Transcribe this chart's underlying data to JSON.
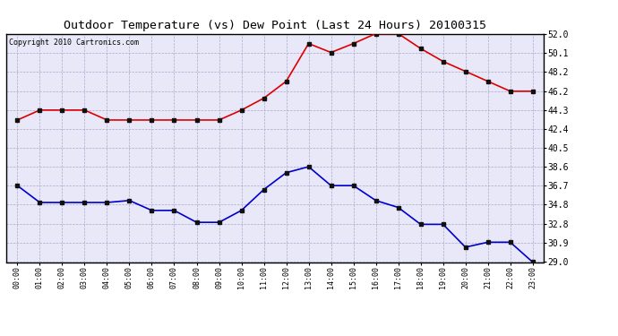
{
  "title": "Outdoor Temperature (vs) Dew Point (Last 24 Hours) 20100315",
  "copyright": "Copyright 2010 Cartronics.com",
  "x_labels": [
    "00:00",
    "01:00",
    "02:00",
    "03:00",
    "04:00",
    "05:00",
    "06:00",
    "07:00",
    "08:00",
    "09:00",
    "10:00",
    "11:00",
    "12:00",
    "13:00",
    "14:00",
    "15:00",
    "16:00",
    "17:00",
    "18:00",
    "19:00",
    "20:00",
    "21:00",
    "22:00",
    "23:00"
  ],
  "temp_red": [
    43.3,
    44.3,
    44.3,
    44.3,
    43.3,
    43.3,
    43.3,
    43.3,
    43.3,
    43.3,
    44.3,
    45.5,
    47.2,
    51.0,
    50.1,
    51.0,
    52.0,
    52.0,
    50.5,
    49.2,
    48.2,
    47.2,
    46.2,
    46.2
  ],
  "dew_blue": [
    36.7,
    35.0,
    35.0,
    35.0,
    35.0,
    35.2,
    34.2,
    34.2,
    33.0,
    33.0,
    34.2,
    36.3,
    38.0,
    38.6,
    36.7,
    36.7,
    35.2,
    34.5,
    32.8,
    32.8,
    30.5,
    31.0,
    31.0,
    29.0
  ],
  "y_ticks": [
    29.0,
    30.9,
    32.8,
    34.8,
    36.7,
    38.6,
    40.5,
    42.4,
    44.3,
    46.2,
    48.2,
    50.1,
    52.0
  ],
  "y_min": 29.0,
  "y_max": 52.0,
  "bg_color": "#ffffff",
  "plot_bg_color": "#e8e8f8",
  "grid_color": "#aaaacc",
  "red_color": "#dd0000",
  "blue_color": "#0000cc",
  "title_fontsize": 9.5,
  "copyright_fontsize": 6.0
}
